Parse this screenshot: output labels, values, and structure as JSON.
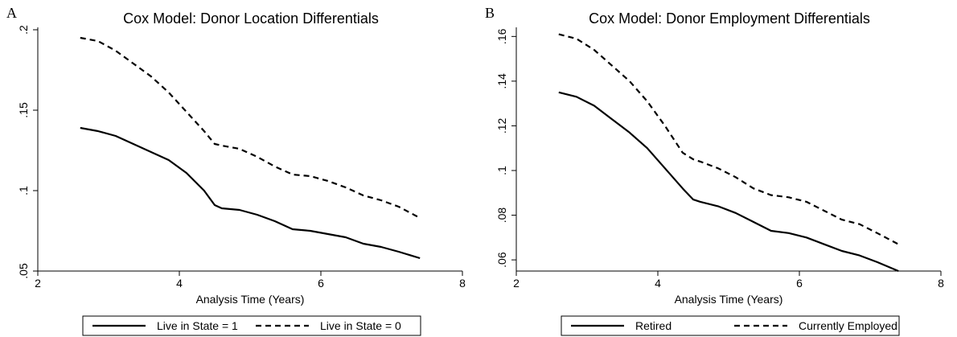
{
  "panels": [
    {
      "letter": "A",
      "chart_data": {
        "type": "line",
        "title": "Cox Model: Donor Location Differentials",
        "xlabel": "Analysis Time (Years)",
        "ylabel": "",
        "xlim": [
          2,
          8
        ],
        "ylim": [
          0.05,
          0.2
        ],
        "xticks": [
          2,
          4,
          6,
          8
        ],
        "xtick_labels": [
          "2",
          "4",
          "6",
          "8"
        ],
        "yticks": [
          0.05,
          0.1,
          0.15,
          0.2
        ],
        "ytick_labels": [
          ".05",
          ".1",
          ".15",
          ".2"
        ],
        "grid": false,
        "legend_position": "bottom",
        "series": [
          {
            "name": "Live in State = 1",
            "style": "solid",
            "x": [
              2.6,
              2.85,
              3.1,
              3.35,
              3.6,
              3.85,
              4.1,
              4.35,
              4.5,
              4.6,
              4.85,
              5.1,
              5.35,
              5.6,
              5.85,
              6.1,
              6.35,
              6.6,
              6.85,
              7.1,
              7.4
            ],
            "y": [
              0.139,
              0.137,
              0.134,
              0.129,
              0.124,
              0.119,
              0.111,
              0.1,
              0.091,
              0.089,
              0.088,
              0.085,
              0.081,
              0.076,
              0.075,
              0.073,
              0.071,
              0.067,
              0.065,
              0.062,
              0.058
            ]
          },
          {
            "name": "Live in State = 0",
            "style": "dashed",
            "x": [
              2.6,
              2.85,
              3.1,
              3.35,
              3.6,
              3.85,
              4.1,
              4.35,
              4.5,
              4.6,
              4.85,
              5.1,
              5.35,
              5.6,
              5.85,
              6.1,
              6.35,
              6.6,
              6.85,
              7.1,
              7.4
            ],
            "y": [
              0.195,
              0.193,
              0.187,
              0.179,
              0.171,
              0.161,
              0.149,
              0.137,
              0.129,
              0.128,
              0.126,
              0.121,
              0.115,
              0.11,
              0.109,
              0.106,
              0.102,
              0.097,
              0.094,
              0.09,
              0.083
            ]
          }
        ]
      }
    },
    {
      "letter": "B",
      "chart_data": {
        "type": "line",
        "title": "Cox Model: Donor Employment Differentials",
        "xlabel": "Analysis Time (Years)",
        "ylabel": "",
        "xlim": [
          2,
          8
        ],
        "ylim": [
          0.055,
          0.163
        ],
        "xticks": [
          2,
          4,
          6,
          8
        ],
        "xtick_labels": [
          "2",
          "4",
          "6",
          "8"
        ],
        "yticks": [
          0.06,
          0.08,
          0.1,
          0.12,
          0.14,
          0.16
        ],
        "ytick_labels": [
          ".06",
          ".08",
          ".1",
          ".12",
          ".14",
          ".16"
        ],
        "grid": false,
        "legend_position": "bottom",
        "series": [
          {
            "name": "Retired",
            "style": "solid",
            "x": [
              2.6,
              2.85,
              3.1,
              3.35,
              3.6,
              3.85,
              4.1,
              4.35,
              4.5,
              4.6,
              4.85,
              5.1,
              5.35,
              5.6,
              5.85,
              6.1,
              6.35,
              6.6,
              6.85,
              7.1,
              7.4
            ],
            "y": [
              0.135,
              0.133,
              0.129,
              0.123,
              0.117,
              0.11,
              0.101,
              0.092,
              0.087,
              0.086,
              0.084,
              0.081,
              0.077,
              0.073,
              0.072,
              0.07,
              0.067,
              0.064,
              0.062,
              0.059,
              0.055
            ]
          },
          {
            "name": "Currently Employed",
            "style": "dashed",
            "x": [
              2.6,
              2.85,
              3.1,
              3.35,
              3.6,
              3.85,
              4.1,
              4.35,
              4.5,
              4.6,
              4.85,
              5.1,
              5.35,
              5.6,
              5.85,
              6.1,
              6.35,
              6.6,
              6.85,
              7.1,
              7.4
            ],
            "y": [
              0.161,
              0.159,
              0.154,
              0.147,
              0.14,
              0.131,
              0.12,
              0.108,
              0.105,
              0.104,
              0.101,
              0.097,
              0.092,
              0.089,
              0.088,
              0.086,
              0.082,
              0.078,
              0.076,
              0.072,
              0.067
            ]
          }
        ]
      }
    }
  ]
}
